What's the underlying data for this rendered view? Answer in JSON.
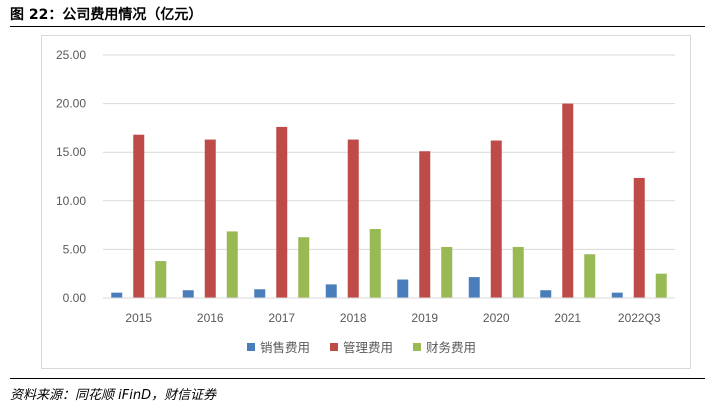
{
  "title": "图 22：公司费用情况（亿元）",
  "source": "资料来源：同花顺 iFinD，财信证券",
  "chart_data": {
    "type": "bar",
    "categories": [
      "2015",
      "2016",
      "2017",
      "2018",
      "2019",
      "2020",
      "2021",
      "2022Q3"
    ],
    "series": [
      {
        "name": "销售费用",
        "color": "#4a7ebb",
        "values": [
          0.55,
          0.8,
          0.9,
          1.4,
          1.9,
          2.15,
          0.8,
          0.55
        ]
      },
      {
        "name": "管理费用",
        "color": "#be4b48",
        "values": [
          16.8,
          16.3,
          17.6,
          16.3,
          15.1,
          16.2,
          20.0,
          12.35
        ]
      },
      {
        "name": "财务费用",
        "color": "#98b954",
        "values": [
          3.8,
          6.85,
          6.25,
          7.1,
          5.25,
          5.25,
          4.5,
          2.5
        ]
      }
    ],
    "ylim": [
      0,
      25
    ],
    "yticks": [
      "0.00",
      "5.00",
      "10.00",
      "15.00",
      "20.00",
      "25.00"
    ],
    "grid": true,
    "legend_position": "bottom"
  }
}
